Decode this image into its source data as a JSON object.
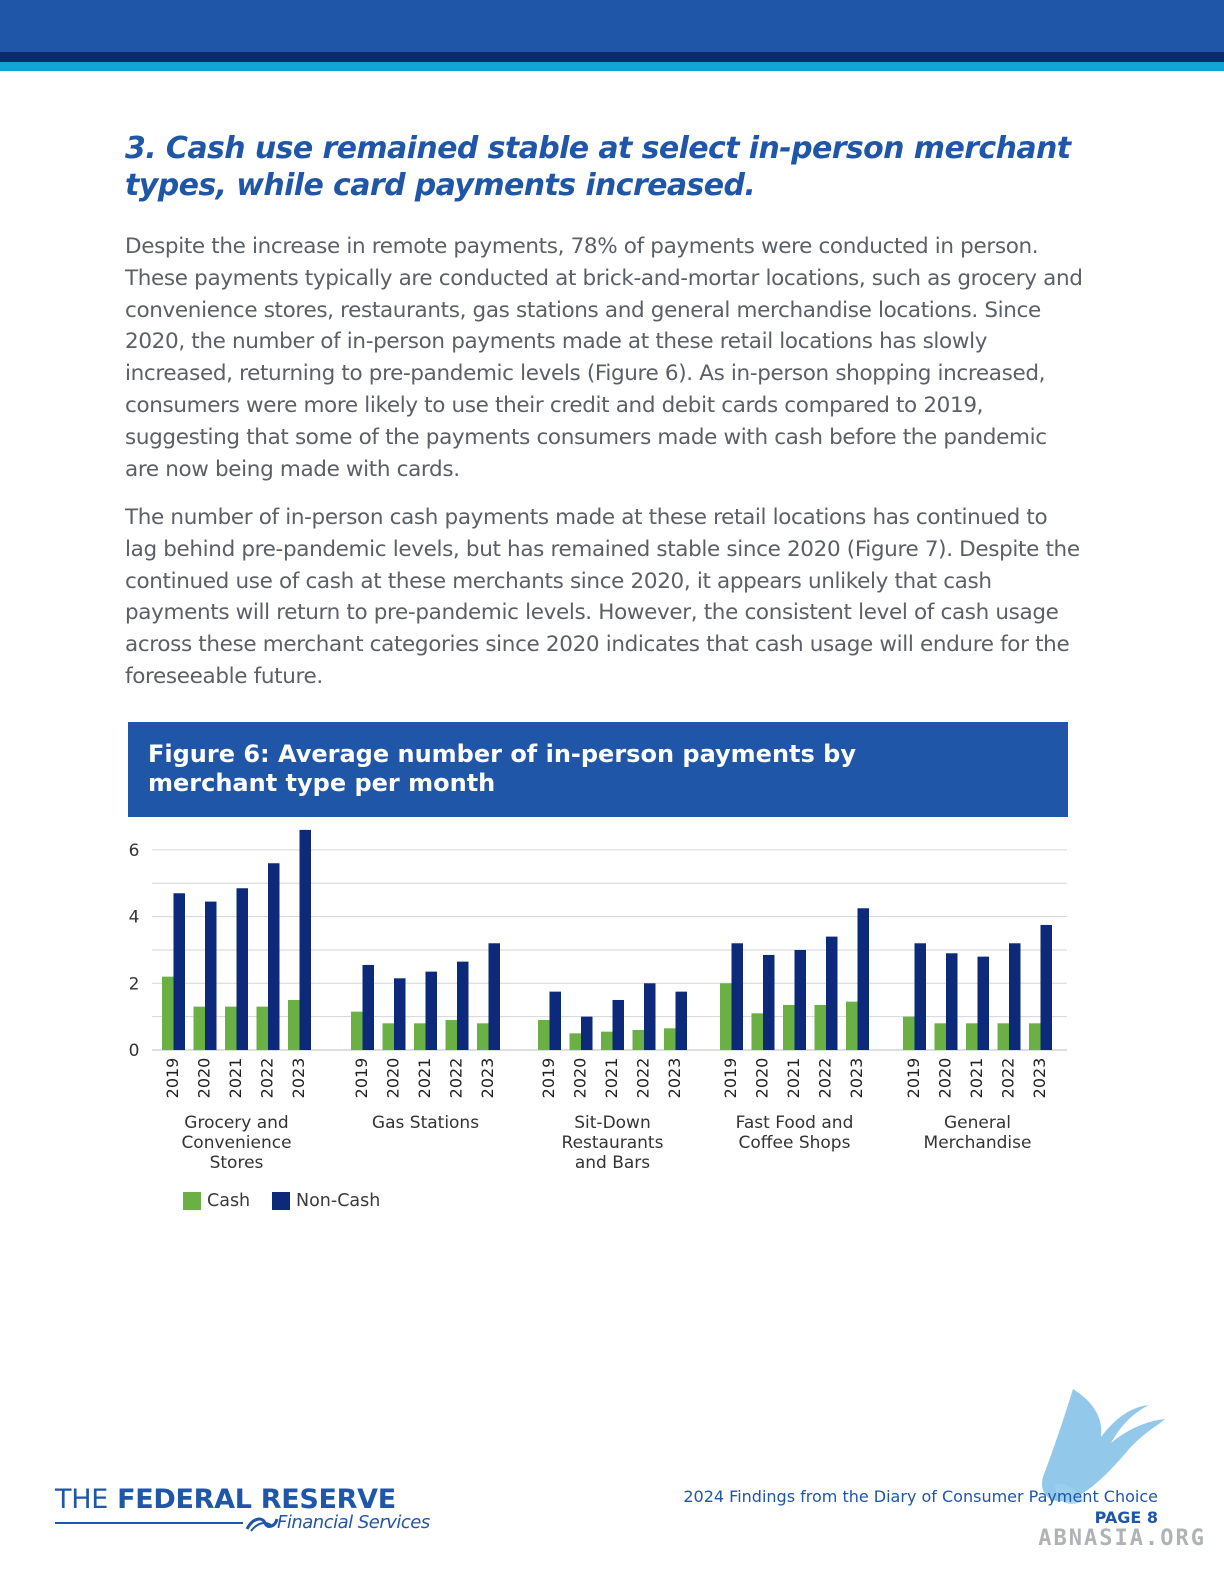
{
  "colors": {
    "brand_blue": "#1f56a8",
    "navy": "#0b2a6b",
    "accent_cyan": "#15a0d8",
    "cash_green": "#6ab044",
    "noncash_navy": "#0d2a7a",
    "body_text": "#5b6066"
  },
  "section": {
    "heading": "3. Cash use remained stable at select in-person merchant types, while card payments increased.",
    "paragraphs": [
      "Despite the increase in remote payments, 78% of payments were conducted in person. These payments typically are conducted at brick-and-mortar locations, such as grocery and convenience stores, restaurants, gas stations and general merchandise locations. Since 2020, the number of in-person payments made at these retail locations has slowly increased, returning to pre-pandemic levels (Figure 6). As in-person shopping increased, consumers were more likely to use their credit and debit cards compared to 2019, suggesting that some of the payments consumers made with cash before the pandemic are now being made with cards.",
      "The number of in-person cash payments made at these retail locations has continued to lag behind pre-pandemic levels, but has remained stable since 2020 (Figure 7). Despite the continued use of cash at these merchants since 2020, it appears unlikely that cash payments will return to pre-pandemic levels. However, the consistent level of cash usage across these merchant categories since 2020 indicates that cash usage will endure for the foreseeable future."
    ]
  },
  "figure": {
    "title": "Figure 6: Average number of in-person payments by merchant type per month"
  },
  "chart_data": {
    "type": "bar",
    "title": "Figure 6: Average number of in-person payments by merchant type per month",
    "xlabel": "",
    "ylabel": "",
    "ylim": [
      0,
      6.6
    ],
    "yticks": [
      0,
      2,
      4,
      6
    ],
    "grid": true,
    "legend_position": "bottom-left",
    "groups": [
      {
        "label": [
          "Grocery and",
          "Convenience",
          "Stores"
        ],
        "years": [
          "2019",
          "2020",
          "2021",
          "2022",
          "2023"
        ],
        "cash": [
          2.2,
          1.3,
          1.3,
          1.3,
          1.5
        ],
        "noncash": [
          4.7,
          4.45,
          4.85,
          5.6,
          6.6
        ]
      },
      {
        "label": [
          "Gas Stations"
        ],
        "years": [
          "2019",
          "2020",
          "2021",
          "2022",
          "2023"
        ],
        "cash": [
          1.15,
          0.8,
          0.8,
          0.9,
          0.8
        ],
        "noncash": [
          2.55,
          2.15,
          2.35,
          2.65,
          3.2
        ]
      },
      {
        "label": [
          "Sit-Down",
          "Restaurants",
          "and Bars"
        ],
        "years": [
          "2019",
          "2020",
          "2021",
          "2022",
          "2023"
        ],
        "cash": [
          0.9,
          0.5,
          0.55,
          0.6,
          0.65
        ],
        "noncash": [
          1.75,
          1.0,
          1.5,
          2.0,
          1.75
        ]
      },
      {
        "label": [
          "Fast Food and",
          "Coffee Shops"
        ],
        "years": [
          "2019",
          "2020",
          "2021",
          "2022",
          "2023"
        ],
        "cash": [
          2.0,
          1.1,
          1.35,
          1.35,
          1.45
        ],
        "noncash": [
          3.2,
          2.85,
          3.0,
          3.4,
          4.25
        ]
      },
      {
        "label": [
          "General",
          "Merchandise"
        ],
        "years": [
          "2019",
          "2020",
          "2021",
          "2022",
          "2023"
        ],
        "cash": [
          1.0,
          0.8,
          0.8,
          0.8,
          0.8
        ],
        "noncash": [
          3.2,
          2.9,
          2.8,
          3.2,
          3.75
        ]
      }
    ],
    "series": [
      {
        "name": "Cash",
        "color": "#6ab044"
      },
      {
        "name": "Non-Cash",
        "color": "#0d2a7a"
      }
    ]
  },
  "footer": {
    "logo_the": "THE",
    "logo_name": "FEDERAL RESERVE",
    "logo_sub": "Financial Services",
    "document_title": "2024 Findings from the Diary of Consumer Payment Choice",
    "page_label": "PAGE 8"
  },
  "watermark": {
    "text": "ABNASIA.ORG",
    "icon": "bird-icon"
  }
}
